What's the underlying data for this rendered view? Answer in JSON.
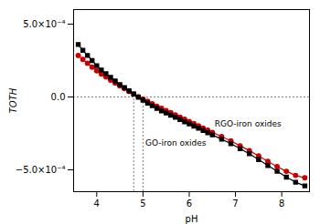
{
  "chart_data": {
    "type": "line",
    "xlabel": "pH",
    "ylabel": "TOTH",
    "xlim": [
      3.5,
      8.6
    ],
    "ylim": [
      -0.00065,
      0.0006
    ],
    "xticks": [
      4,
      5,
      6,
      7,
      8
    ],
    "yticks": [
      {
        "value": -0.0005,
        "label": "−5.0×10⁻⁴"
      },
      {
        "value": 0.0,
        "label": "0.0"
      },
      {
        "value": 0.0005,
        "label": "5.0×10⁻⁴"
      }
    ],
    "x": [
      3.6,
      3.7,
      3.8,
      3.9,
      4.0,
      4.1,
      4.2,
      4.3,
      4.4,
      4.5,
      4.6,
      4.7,
      4.8,
      4.9,
      5.0,
      5.1,
      5.2,
      5.3,
      5.4,
      5.5,
      5.6,
      5.7,
      5.8,
      5.9,
      6.0,
      6.1,
      6.2,
      6.3,
      6.4,
      6.5,
      6.7,
      6.9,
      7.1,
      7.3,
      7.5,
      7.7,
      7.9,
      8.1,
      8.3,
      8.5
    ],
    "series": [
      {
        "color": "#000000",
        "marker": "square",
        "values": [
          0.00036,
          0.00032,
          0.000285,
          0.00025,
          0.000215,
          0.000185,
          0.00016,
          0.000135,
          0.00011,
          8.5e-05,
          6.5e-05,
          4.2e-05,
          2e-05,
          -2e-06,
          -2.2e-05,
          -4.2e-05,
          -6e-05,
          -7.8e-05,
          -9.5e-05,
          -0.00011,
          -0.000125,
          -0.00014,
          -0.000155,
          -0.00017,
          -0.000185,
          -0.0002,
          -0.000215,
          -0.00023,
          -0.000245,
          -0.00026,
          -0.00029,
          -0.00032,
          -0.000355,
          -0.00039,
          -0.00043,
          -0.00047,
          -0.00051,
          -0.00055,
          -0.000585,
          -0.00061
        ]
      },
      {
        "color": "#cc0000",
        "marker": "circle",
        "values": [
          0.000285,
          0.000258,
          0.000232,
          0.000205,
          0.00018,
          0.000158,
          0.000137,
          0.000116,
          9.6e-05,
          7.6e-05,
          5.8e-05,
          3.8e-05,
          2e-05,
          2e-06,
          -1.4e-05,
          -3e-05,
          -4.7e-05,
          -6.3e-05,
          -7.8e-05,
          -9.3e-05,
          -0.000108,
          -0.000123,
          -0.000138,
          -0.000153,
          -0.000168,
          -0.000183,
          -0.000198,
          -0.000213,
          -0.000228,
          -0.000243,
          -0.000272,
          -0.000302,
          -0.000335,
          -0.000368,
          -0.000405,
          -0.000442,
          -0.000478,
          -0.00051,
          -0.000538,
          -0.000555
        ]
      }
    ],
    "reference_lines": {
      "y": [
        0
      ],
      "x": [
        4.8,
        5.0
      ]
    },
    "annotations": [
      {
        "text": "RGO-iron oxides",
        "x": 6.55,
        "y": -0.000185
      },
      {
        "text": "GO-iron oxides",
        "x": 5.05,
        "y": -0.000315
      }
    ]
  }
}
